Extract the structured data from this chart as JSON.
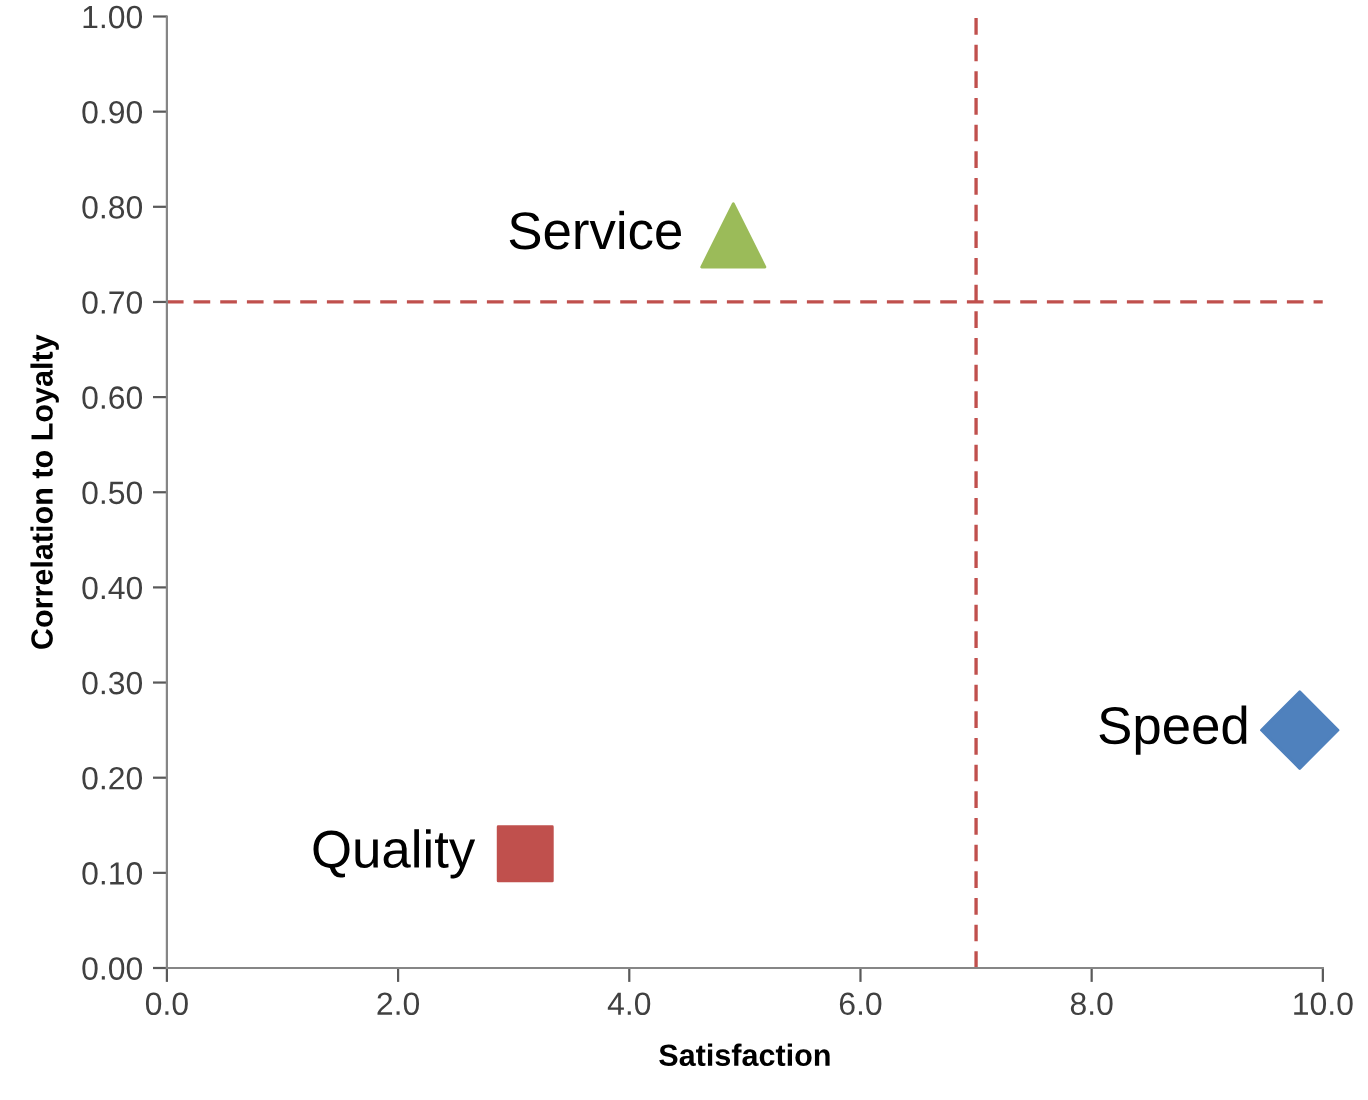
{
  "chart_data": {
    "type": "scatter",
    "xlabel": "Satisfaction",
    "ylabel": "Correlation to Loyalty",
    "series": [
      {
        "name": "Service",
        "color": "#9bbb59",
        "marker": "triangle",
        "x": [
          4.9
        ],
        "values": [
          0.77
        ]
      },
      {
        "name": "Quality",
        "color": "#c0504d",
        "marker": "square",
        "x": [
          3.1
        ],
        "values": [
          0.12
        ]
      },
      {
        "name": "Speed",
        "color": "#4f81bd",
        "marker": "diamond",
        "x": [
          9.8
        ],
        "values": [
          0.25
        ]
      }
    ],
    "xlim": [
      0,
      10
    ],
    "xticks": [
      {
        "value": 0,
        "label": "0.0"
      },
      {
        "value": 2,
        "label": "2.0"
      },
      {
        "value": 4,
        "label": "4.0"
      },
      {
        "value": 6,
        "label": "6.0"
      },
      {
        "value": 8,
        "label": "8.0"
      },
      {
        "value": 10,
        "label": "10.0"
      }
    ],
    "ylim": [
      0,
      1
    ],
    "yticks": [
      {
        "value": 0,
        "label": "0.00"
      },
      {
        "value": 0.1,
        "label": "0.10"
      },
      {
        "value": 0.2,
        "label": "0.20"
      },
      {
        "value": 0.3,
        "label": "0.30"
      },
      {
        "value": 0.4,
        "label": "0.40"
      },
      {
        "value": 0.5,
        "label": "0.50"
      },
      {
        "value": 0.6,
        "label": "0.60"
      },
      {
        "value": 0.7,
        "label": "0.70"
      },
      {
        "value": 0.8,
        "label": "0.80"
      },
      {
        "value": 0.9,
        "label": "0.90"
      },
      {
        "value": 1.0,
        "label": "1.00"
      }
    ],
    "ref_lines": [
      {
        "axis": "y",
        "value": 0.7,
        "color": "#c0504d",
        "line_style": "dashed"
      },
      {
        "axis": "x",
        "value": 7.0,
        "color": "#c0504d",
        "line_style": "dashed"
      }
    ],
    "grid": false,
    "legend": false
  }
}
